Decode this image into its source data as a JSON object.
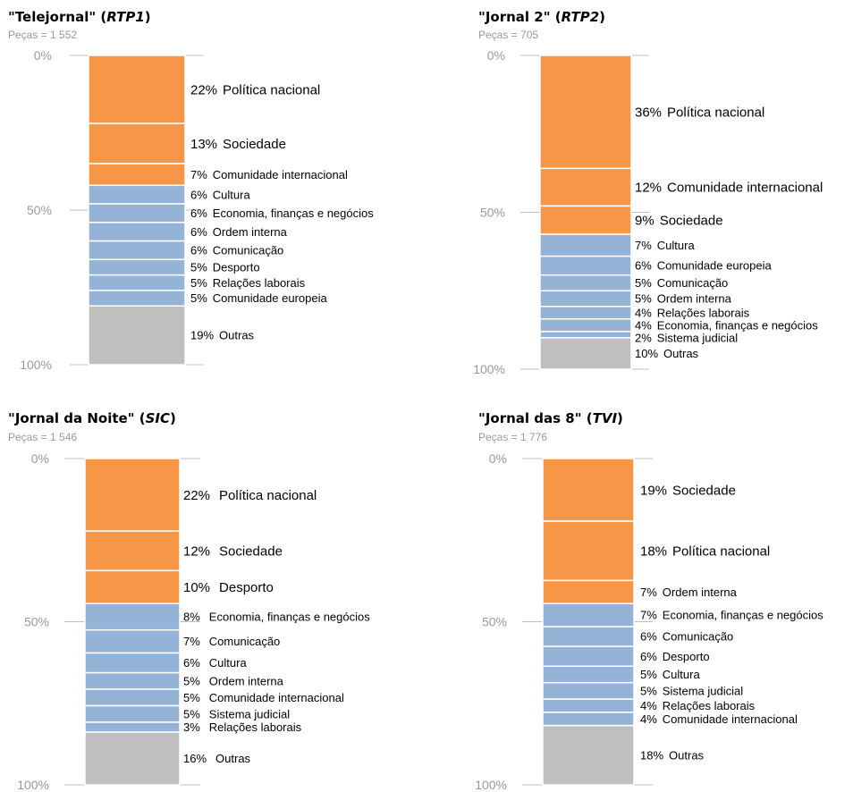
{
  "chart_data": [
    {
      "type": "bar",
      "title": {
        "prefix": "\"Telejornal\" (",
        "channel": "RTP1",
        "suffix": ")"
      },
      "subtitle": "Peças = 1 552",
      "yticks": [
        "0%",
        "50%",
        "100%"
      ],
      "ylim": [
        0,
        100
      ],
      "segments": [
        {
          "pct": "22%",
          "label": "Política nacional",
          "value": 22,
          "group": "top"
        },
        {
          "pct": "13%",
          "label": "Sociedade",
          "value": 13,
          "group": "top"
        },
        {
          "pct": "7%",
          "label": "Comunidade internacional",
          "value": 7,
          "group": "top"
        },
        {
          "pct": "6%",
          "label": "Cultura",
          "value": 6,
          "group": "mid"
        },
        {
          "pct": "6%",
          "label": "Economia, finanças e negócios",
          "value": 6,
          "group": "mid"
        },
        {
          "pct": "6%",
          "label": "Ordem interna",
          "value": 6,
          "group": "mid"
        },
        {
          "pct": "6%",
          "label": "Comunicação",
          "value": 6,
          "group": "mid"
        },
        {
          "pct": "5%",
          "label": "Desporto",
          "value": 5,
          "group": "mid"
        },
        {
          "pct": "5%",
          "label": "Relações laborais",
          "value": 5,
          "group": "mid"
        },
        {
          "pct": "5%",
          "label": "Comunidade europeia",
          "value": 5,
          "group": "mid"
        },
        {
          "pct": "19%",
          "label": "Outras",
          "value": 19,
          "group": "other"
        }
      ]
    },
    {
      "type": "bar",
      "title": {
        "prefix": "\"Jornal 2\" (",
        "channel": "RTP2",
        "suffix": ")"
      },
      "subtitle": "Peças = 705",
      "yticks": [
        "0%",
        "50%",
        "100%"
      ],
      "ylim": [
        0,
        100
      ],
      "segments": [
        {
          "pct": "36%",
          "label": "Política nacional",
          "value": 36,
          "group": "top"
        },
        {
          "pct": "12%",
          "label": "Comunidade internacional",
          "value": 12,
          "group": "top"
        },
        {
          "pct": "9%",
          "label": "Sociedade",
          "value": 9,
          "group": "top"
        },
        {
          "pct": "7%",
          "label": "Cultura",
          "value": 7,
          "group": "mid"
        },
        {
          "pct": "6%",
          "label": "Comunidade europeia",
          "value": 6,
          "group": "mid"
        },
        {
          "pct": "5%",
          "label": "Comunicação",
          "value": 5,
          "group": "mid"
        },
        {
          "pct": "5%",
          "label": "Ordem interna",
          "value": 5,
          "group": "mid"
        },
        {
          "pct": "4%",
          "label": "Relações laborais",
          "value": 4,
          "group": "mid"
        },
        {
          "pct": "4%",
          "label": "Economia, finanças e negócios",
          "value": 4,
          "group": "mid"
        },
        {
          "pct": "2%",
          "label": "Sistema judicial",
          "value": 2,
          "group": "mid"
        },
        {
          "pct": "10%",
          "label": "Outras",
          "value": 10,
          "group": "other"
        }
      ]
    },
    {
      "type": "bar",
      "title": {
        "prefix": "\"Jornal da Noite\" (",
        "channel": "SIC",
        "suffix": ")"
      },
      "subtitle": "Peças = 1 546",
      "yticks": [
        "0%",
        "50%",
        "100%"
      ],
      "ylim": [
        0,
        100
      ],
      "segments": [
        {
          "pct": "22%",
          "label": "Política nacional",
          "value": 22,
          "group": "top"
        },
        {
          "pct": "12%",
          "label": "Sociedade",
          "value": 12,
          "group": "top"
        },
        {
          "pct": "10%",
          "label": "Desporto",
          "value": 10,
          "group": "top"
        },
        {
          "pct": "8%",
          "label": "Economia, finanças e negócios",
          "value": 8,
          "group": "mid"
        },
        {
          "pct": "7%",
          "label": "Comunicação",
          "value": 7,
          "group": "mid"
        },
        {
          "pct": "6%",
          "label": "Cultura",
          "value": 6,
          "group": "mid"
        },
        {
          "pct": "5%",
          "label": "Ordem interna",
          "value": 5,
          "group": "mid"
        },
        {
          "pct": "5%",
          "label": "Comunidade internacional",
          "value": 5,
          "group": "mid"
        },
        {
          "pct": "5%",
          "label": "Sistema judicial",
          "value": 5,
          "group": "mid"
        },
        {
          "pct": "3%",
          "label": "Relações laborais",
          "value": 3,
          "group": "mid"
        },
        {
          "pct": "16%",
          "label": "Outras",
          "value": 16,
          "group": "other"
        }
      ]
    },
    {
      "type": "bar",
      "title": {
        "prefix": "\"Jornal das 8\" (",
        "channel": "TVI",
        "suffix": ")"
      },
      "subtitle": "Peças = 1 776",
      "yticks": [
        "0%",
        "50%",
        "100%"
      ],
      "ylim": [
        0,
        100
      ],
      "segments": [
        {
          "pct": "19%",
          "label": "Sociedade",
          "value": 19,
          "group": "top"
        },
        {
          "pct": "18%",
          "label": "Política nacional",
          "value": 18,
          "group": "top"
        },
        {
          "pct": "7%",
          "label": "Ordem interna",
          "value": 7,
          "group": "top"
        },
        {
          "pct": "7%",
          "label": "Economia, finanças e negócios",
          "value": 7,
          "group": "mid"
        },
        {
          "pct": "6%",
          "label": "Comunicação",
          "value": 6,
          "group": "mid"
        },
        {
          "pct": "6%",
          "label": "Desporto",
          "value": 6,
          "group": "mid"
        },
        {
          "pct": "5%",
          "label": "Cultura",
          "value": 5,
          "group": "mid"
        },
        {
          "pct": "5%",
          "label": "Sistema judicial",
          "value": 5,
          "group": "mid"
        },
        {
          "pct": "4%",
          "label": "Relações laborais",
          "value": 4,
          "group": "mid"
        },
        {
          "pct": "4%",
          "label": "Comunidade internacional",
          "value": 4,
          "group": "mid"
        },
        {
          "pct": "18%",
          "label": "Outras",
          "value": 18,
          "group": "other"
        }
      ]
    }
  ],
  "colors": {
    "top": "#f79646",
    "mid": "#95b3d7",
    "other": "#bfbfbf",
    "axis": "#bfbfbf",
    "tick": "#9a9a9a"
  }
}
